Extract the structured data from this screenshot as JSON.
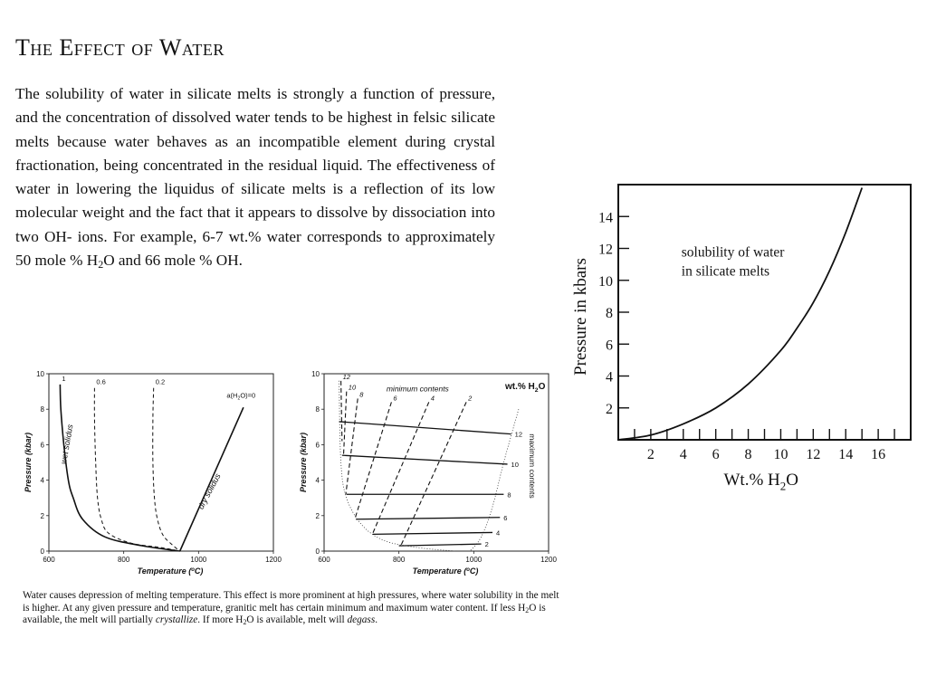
{
  "slide": {
    "title": "The Effect of Water",
    "body": [
      {
        "t": "The solubility of water in silicate melts is strongly a function of pressure, and the concentration of dissolved water tends to be highest in felsic silicate melts because water behaves as an incompatible element during crystal fractionation, being concentrated in the residual liquid.  The effectiveness of water in lowering the liquidus of silicate melts is a reflection of its low molecular weight and the fact that it appears to dissolve by dissociation into two OH- ions.   For example, 6-7 wt.% water corresponds to approximately 50 mole % H"
      },
      {
        "t": "2",
        "sub": true
      },
      {
        "t": "O and 66 mole % OH."
      }
    ]
  },
  "caption": [
    {
      "t": "Water causes depression of melting temperature.  This effect is more prominent at high pressures, where water solubility in the melt is higher.  At any given pressure and temperature, granitic melt has certain minimum and maximum water content.  If less H"
    },
    {
      "t": "2",
      "sub": true
    },
    {
      "t": "O is available, the melt will partially "
    },
    {
      "t": "crystallize",
      "i": true
    },
    {
      "t": ".  If more H"
    },
    {
      "t": "2",
      "sub": true
    },
    {
      "t": "O is available, melt will "
    },
    {
      "t": "degass",
      "i": true
    },
    {
      "t": "."
    }
  ],
  "chart_data": [
    {
      "type": "line",
      "xlabel": "Temperature (°C)",
      "ylabel": "Pressure (kbar)",
      "xlim": [
        600,
        1200
      ],
      "ylim": [
        0,
        10
      ],
      "xticks": [
        600,
        800,
        1000,
        1200
      ],
      "yticks": [
        0,
        2,
        4,
        6,
        8,
        10
      ],
      "grid": false,
      "annotations": [
        {
          "text": "wet solidus",
          "x": 655,
          "y": 6.0,
          "rotate": -80
        },
        {
          "text": "dry solidus",
          "x": 1035,
          "y": 3.3,
          "rotate": -62
        },
        {
          "text": "a(H₂O)=0",
          "x": 1080,
          "y": 8.5
        }
      ],
      "series": [
        {
          "name": "1",
          "style": "solid",
          "points": [
            [
              630,
              9.4
            ],
            [
              632,
              8
            ],
            [
              640,
              6
            ],
            [
              652,
              4
            ],
            [
              665,
              3
            ],
            [
              690,
              1.8
            ],
            [
              750,
              0.8
            ],
            [
              850,
              0.3
            ],
            [
              950,
              0
            ]
          ]
        },
        {
          "name": "0.6",
          "style": "dashed",
          "points": [
            [
              722,
              9.2
            ],
            [
              722,
              7.5
            ],
            [
              725,
              5
            ],
            [
              730,
              3
            ],
            [
              740,
              1.8
            ],
            [
              760,
              1.0
            ],
            [
              820,
              0.45
            ],
            [
              900,
              0.2
            ],
            [
              950,
              0
            ]
          ]
        },
        {
          "name": "0.2",
          "style": "dashed",
          "points": [
            [
              880,
              9.2
            ],
            [
              878,
              7.5
            ],
            [
              878,
              5
            ],
            [
              882,
              3
            ],
            [
              890,
              1.8
            ],
            [
              905,
              0.9
            ],
            [
              930,
              0.35
            ],
            [
              950,
              0
            ]
          ]
        },
        {
          "name": "a(H₂O)=0",
          "style": "solid",
          "points": [
            [
              950,
              0
            ],
            [
              1120,
              8.1
            ]
          ]
        }
      ]
    },
    {
      "type": "line",
      "xlabel": "Temperature (°C)",
      "ylabel": "Pressure (kbar)",
      "xlim": [
        600,
        1200
      ],
      "ylim": [
        0,
        10
      ],
      "xticks": [
        600,
        800,
        1000,
        1200
      ],
      "yticks": [
        0,
        2,
        4,
        6,
        8,
        10
      ],
      "grid": false,
      "legend_title": "wt.% H₂O",
      "annotations": [
        {
          "text": "minimum contents",
          "x": 850,
          "y": 9.0
        },
        {
          "text": "maximum contents",
          "x": 1130,
          "y": 4.8,
          "rotate": 90
        }
      ],
      "isobar_lines": [
        {
          "name": "12",
          "points": [
            [
              640,
              7.3
            ],
            [
              1100,
              6.6
            ]
          ]
        },
        {
          "name": "10",
          "points": [
            [
              648,
              5.4
            ],
            [
              1090,
              4.9
            ]
          ]
        },
        {
          "name": "8",
          "points": [
            [
              660,
              3.2
            ],
            [
              1080,
              3.2
            ]
          ]
        },
        {
          "name": "6",
          "points": [
            [
              685,
              1.8
            ],
            [
              1070,
              1.9
            ]
          ]
        },
        {
          "name": "4",
          "points": [
            [
              730,
              0.95
            ],
            [
              1050,
              1.05
            ]
          ]
        },
        {
          "name": "2",
          "points": [
            [
              800,
              0.3
            ],
            [
              1020,
              0.4
            ]
          ]
        }
      ],
      "isopleth_lines": [
        {
          "name": "12",
          "points": [
            [
              645,
              9.6
            ],
            [
              648,
              6.2
            ]
          ]
        },
        {
          "name": "10",
          "points": [
            [
              660,
              9.0
            ],
            [
              652,
              5.4
            ]
          ]
        },
        {
          "name": "8",
          "points": [
            [
              690,
              8.6
            ],
            [
              658,
              3.2
            ]
          ]
        },
        {
          "name": "6",
          "points": [
            [
              780,
              8.4
            ],
            [
              682,
              1.8
            ]
          ]
        },
        {
          "name": "4",
          "points": [
            [
              880,
              8.4
            ],
            [
              728,
              0.9
            ]
          ]
        },
        {
          "name": "2",
          "points": [
            [
              980,
              8.4
            ],
            [
              805,
              0.3
            ]
          ]
        }
      ],
      "minimum_boundary": [
        [
          640,
          9.6
        ],
        [
          645,
          5
        ],
        [
          660,
          3
        ],
        [
          700,
          1.5
        ],
        [
          760,
          0.6
        ],
        [
          850,
          0.2
        ],
        [
          950,
          0
        ]
      ],
      "maximum_boundary": [
        [
          1120,
          8.0
        ],
        [
          1080,
          5.0
        ],
        [
          1050,
          2.5
        ],
        [
          1020,
          0.8
        ],
        [
          990,
          0
        ]
      ]
    },
    {
      "type": "line",
      "xlabel": "Wt.% H₂O",
      "ylabel": "Pressure in kbars",
      "xlim": [
        0,
        18
      ],
      "ylim": [
        0,
        16
      ],
      "xticks": [
        2,
        4,
        6,
        8,
        10,
        12,
        14,
        16
      ],
      "yticks": [
        2,
        4,
        6,
        8,
        10,
        12,
        14
      ],
      "grid": false,
      "annotations": [
        {
          "text": "solubility of water\n in silicate melts",
          "x": 4,
          "y": 11.5
        }
      ],
      "series": [
        {
          "name": "solubility of water in silicate melts",
          "points": [
            [
              0,
              0
            ],
            [
              2,
              0.3
            ],
            [
              4,
              1.0
            ],
            [
              6,
              2.0
            ],
            [
              8,
              3.5
            ],
            [
              10,
              5.6
            ],
            [
              11,
              7.0
            ],
            [
              12,
              8.6
            ],
            [
              13,
              10.6
            ],
            [
              14,
              13.0
            ],
            [
              15,
              15.8
            ]
          ]
        }
      ]
    }
  ]
}
